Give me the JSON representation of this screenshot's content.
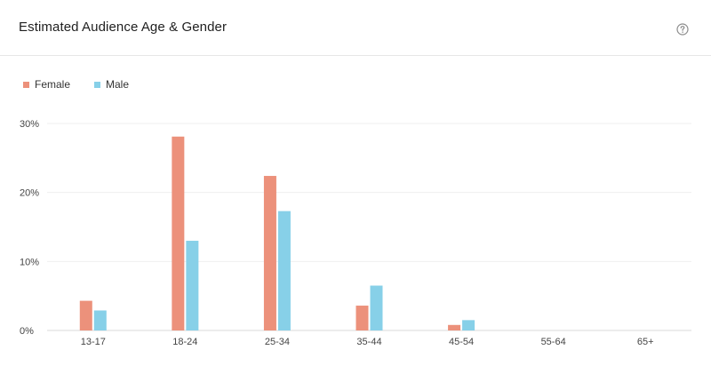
{
  "header": {
    "title": "Estimated Audience Age & Gender",
    "help_icon": "help-circle-icon"
  },
  "legend": [
    {
      "label": "Female",
      "color": "#ec917b"
    },
    {
      "label": "Male",
      "color": "#87d0e8"
    }
  ],
  "chart_data": {
    "type": "bar",
    "title": "Estimated Audience Age & Gender",
    "categories": [
      "13-17",
      "18-24",
      "25-34",
      "35-44",
      "45-54",
      "55-64",
      "65+"
    ],
    "series": [
      {
        "name": "Female",
        "values": [
          4.3,
          28.1,
          22.4,
          3.6,
          0.8,
          0,
          0
        ],
        "color": "#ec917b"
      },
      {
        "name": "Male",
        "values": [
          2.9,
          13.0,
          17.3,
          6.5,
          1.5,
          0,
          0
        ],
        "color": "#87d0e8"
      }
    ],
    "y_ticks": [
      "0%",
      "10%",
      "20%",
      "30%"
    ],
    "ylim": [
      0,
      30
    ],
    "grid": true,
    "legend_position": "top-left",
    "xlabel": "",
    "ylabel": ""
  }
}
